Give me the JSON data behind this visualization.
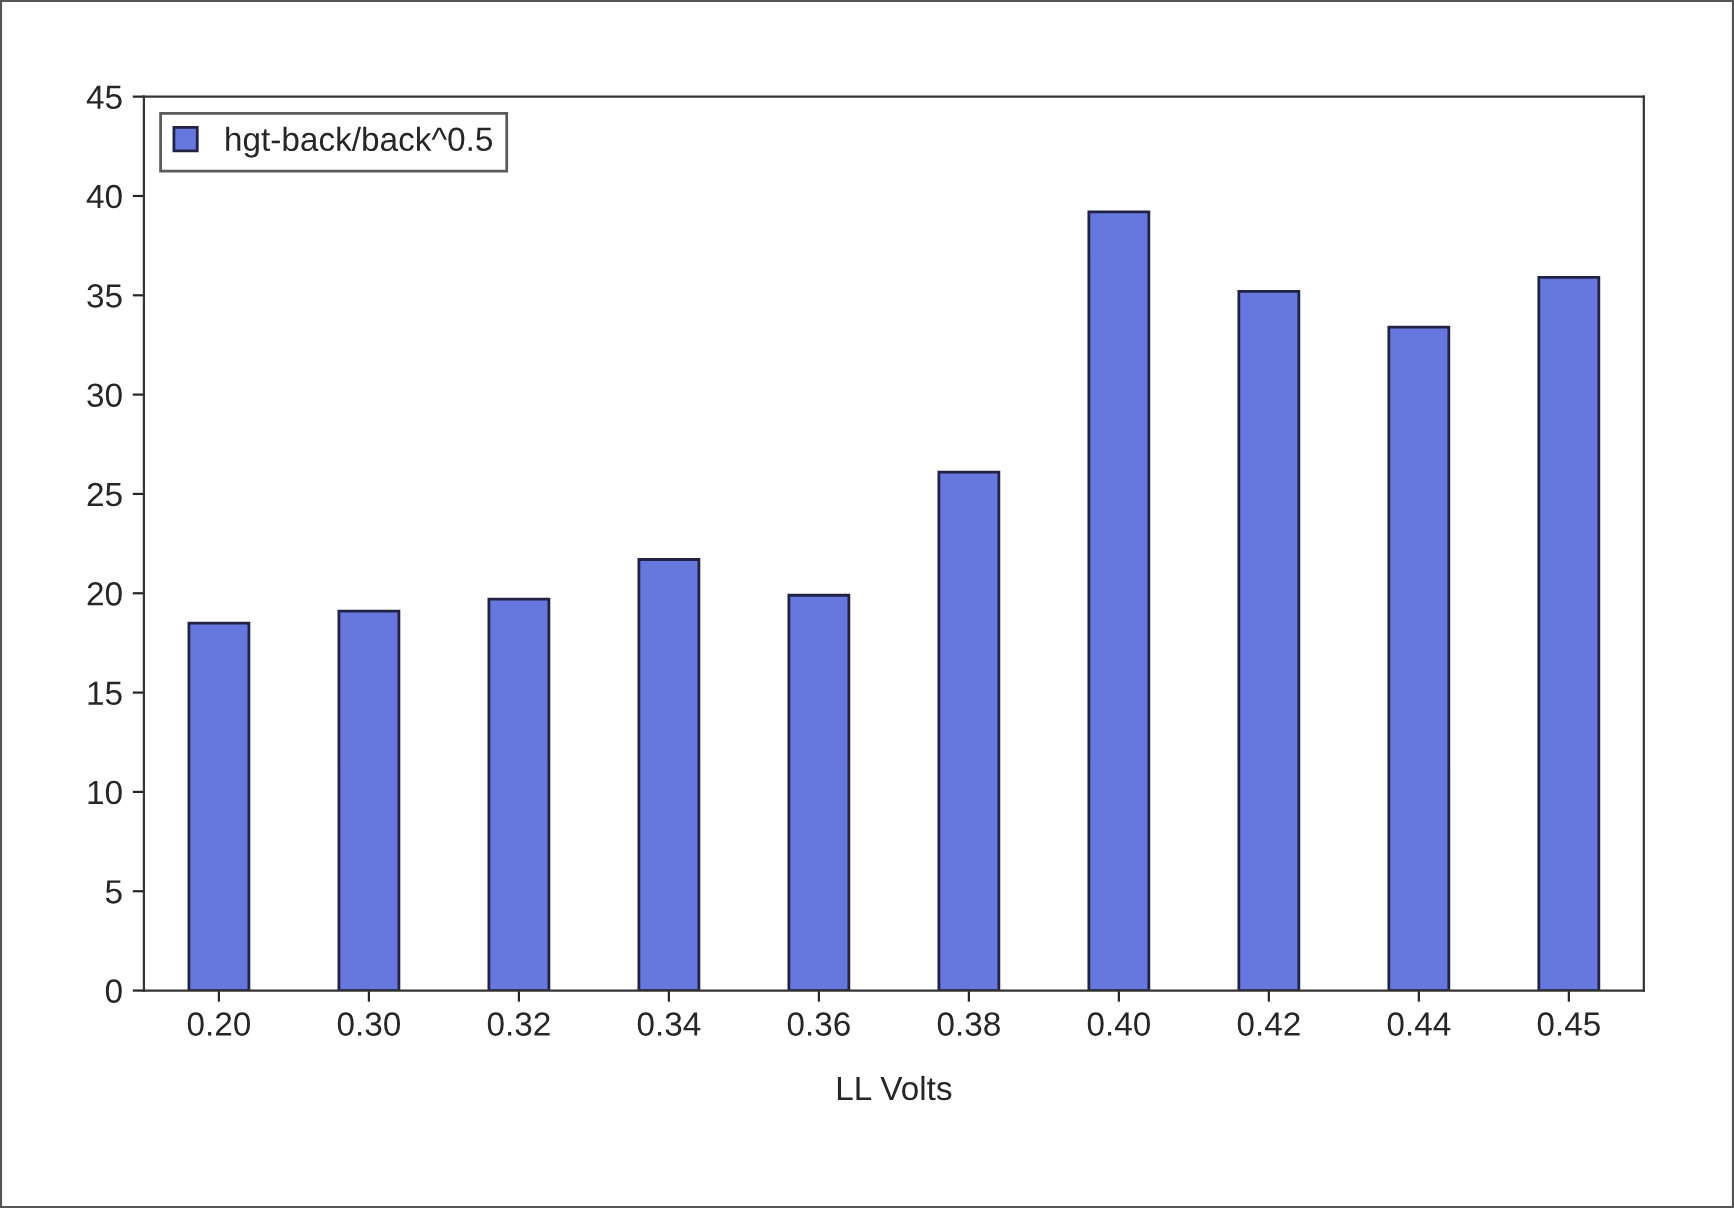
{
  "chart_data": {
    "type": "bar",
    "xlabel": "LL Volts",
    "categories": [
      "0.20",
      "0.30",
      "0.32",
      "0.34",
      "0.36",
      "0.38",
      "0.40",
      "0.42",
      "0.44",
      "0.45"
    ],
    "series": [
      {
        "name": "hgt-back/back^0.5",
        "color": "#6677dd",
        "values": [
          18.5,
          19.1,
          19.7,
          21.7,
          19.9,
          26.1,
          39.2,
          35.2,
          33.4,
          35.9
        ]
      }
    ],
    "ylim": [
      0,
      45
    ],
    "yticks": [
      0,
      5,
      10,
      15,
      20,
      25,
      30,
      35,
      40,
      45
    ],
    "grid": false,
    "legend": "top left"
  }
}
